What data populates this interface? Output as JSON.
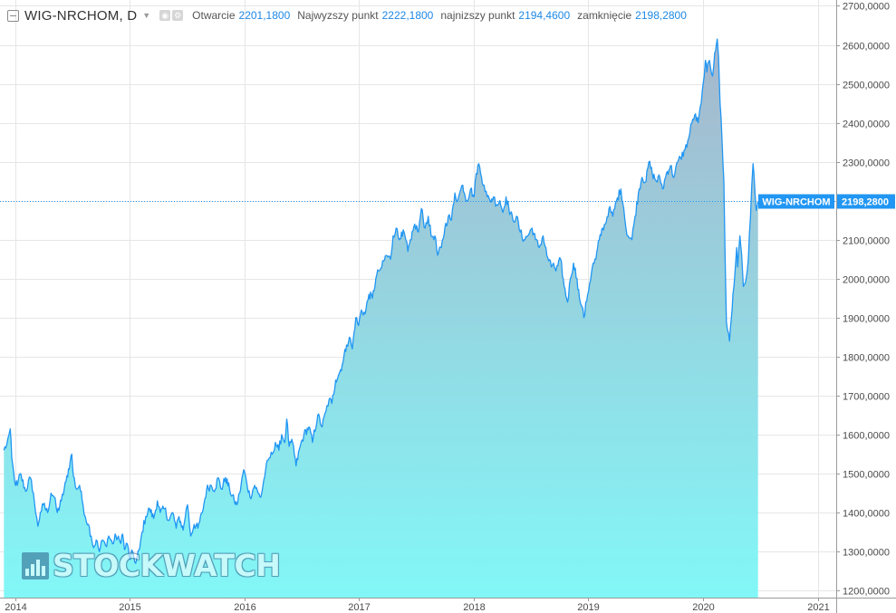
{
  "legend": {
    "symbol": "WIG-NRCHOM, D",
    "open_label": "Otwarcie",
    "open_value": "2201,1800",
    "high_label": "Najwyzszy punkt",
    "high_value": "2222,1800",
    "low_label": "najnizszy punkt",
    "low_value": "2194,4600",
    "close_label": "zamknięcie",
    "close_value": "2198,2800"
  },
  "watermark": "STOCKWATCH",
  "colors": {
    "line": "#2196f3",
    "fill_top": "#a7b6cc",
    "fill_bottom": "#82f7f7",
    "grid": "#e6e6e6",
    "price_tag": "#2196f3",
    "price_line": "#2196f3"
  },
  "chart_data": {
    "type": "area",
    "title": "WIG-NRCHOM, D",
    "xlabel": "",
    "ylabel": "",
    "x_range": [
      "2013-11-25",
      "2021-03-01"
    ],
    "ylim": [
      1182,
      2715
    ],
    "grid": true,
    "y_ticks": [
      1200,
      1300,
      1400,
      1500,
      1600,
      1700,
      1800,
      1900,
      2000,
      2100,
      2200,
      2300,
      2400,
      2500,
      2600,
      2700
    ],
    "y_tick_labels": [
      "1200,0000",
      "1300,0000",
      "1400,0000",
      "1500,0000",
      "1600,0000",
      "1700,0000",
      "1800,0000",
      "1900,0000",
      "2000,0000",
      "2100,0000",
      "2200,0000",
      "2300,0000",
      "2400,0000",
      "2500,0000",
      "2600,0000",
      "2700,0000"
    ],
    "x_ticks": [
      "2014-01-01",
      "2015-01-01",
      "2016-01-01",
      "2017-01-01",
      "2018-01-01",
      "2019-01-01",
      "2020-01-01",
      "2021-01-01"
    ],
    "x_tick_labels": [
      "2014",
      "2015",
      "2016",
      "2017",
      "2018",
      "2019",
      "2020",
      "2021"
    ],
    "last_value": 2198.28,
    "last_value_label": "2198,2800",
    "series": [
      {
        "name": "WIG-NRCHOM",
        "points": [
          [
            "2013-11-26",
            1560
          ],
          [
            "2013-12-05",
            1575
          ],
          [
            "2013-12-12",
            1600
          ],
          [
            "2013-12-16",
            1615
          ],
          [
            "2013-12-21",
            1540
          ],
          [
            "2013-12-30",
            1480
          ],
          [
            "2014-01-08",
            1470
          ],
          [
            "2014-01-17",
            1500
          ],
          [
            "2014-02-03",
            1455
          ],
          [
            "2014-02-18",
            1490
          ],
          [
            "2014-02-28",
            1450
          ],
          [
            "2014-03-07",
            1400
          ],
          [
            "2014-03-14",
            1365
          ],
          [
            "2014-03-22",
            1400
          ],
          [
            "2014-04-01",
            1420
          ],
          [
            "2014-04-14",
            1400
          ],
          [
            "2014-04-25",
            1450
          ],
          [
            "2014-05-05",
            1440
          ],
          [
            "2014-05-15",
            1400
          ],
          [
            "2014-05-28",
            1430
          ],
          [
            "2014-06-12",
            1480
          ],
          [
            "2014-06-25",
            1530
          ],
          [
            "2014-06-30",
            1550
          ],
          [
            "2014-07-05",
            1495
          ],
          [
            "2014-07-15",
            1460
          ],
          [
            "2014-07-25",
            1470
          ],
          [
            "2014-08-05",
            1420
          ],
          [
            "2014-08-12",
            1390
          ],
          [
            "2014-08-22",
            1370
          ],
          [
            "2014-08-31",
            1340
          ],
          [
            "2014-09-08",
            1310
          ],
          [
            "2014-09-16",
            1330
          ],
          [
            "2014-09-26",
            1300
          ],
          [
            "2014-10-06",
            1330
          ],
          [
            "2014-10-16",
            1315
          ],
          [
            "2014-10-26",
            1340
          ],
          [
            "2014-11-07",
            1320
          ],
          [
            "2014-11-18",
            1340
          ],
          [
            "2014-12-01",
            1325
          ],
          [
            "2014-12-09",
            1345
          ],
          [
            "2014-12-15",
            1305
          ],
          [
            "2014-12-24",
            1320
          ],
          [
            "2015-01-02",
            1280
          ],
          [
            "2015-01-10",
            1300
          ],
          [
            "2015-01-20",
            1270
          ],
          [
            "2015-02-02",
            1310
          ],
          [
            "2015-02-09",
            1350
          ],
          [
            "2015-02-21",
            1390
          ],
          [
            "2015-03-05",
            1410
          ],
          [
            "2015-03-18",
            1385
          ],
          [
            "2015-03-30",
            1430
          ],
          [
            "2015-04-08",
            1400
          ],
          [
            "2015-04-22",
            1410
          ],
          [
            "2015-05-06",
            1380
          ],
          [
            "2015-05-18",
            1400
          ],
          [
            "2015-05-29",
            1360
          ],
          [
            "2015-06-07",
            1390
          ],
          [
            "2015-06-20",
            1355
          ],
          [
            "2015-06-30",
            1410
          ],
          [
            "2015-07-04",
            1420
          ],
          [
            "2015-07-14",
            1340
          ],
          [
            "2015-07-25",
            1370
          ],
          [
            "2015-08-06",
            1360
          ],
          [
            "2015-08-20",
            1400
          ],
          [
            "2015-09-03",
            1460
          ],
          [
            "2015-09-17",
            1470
          ],
          [
            "2015-09-30",
            1460
          ],
          [
            "2015-10-09",
            1490
          ],
          [
            "2015-10-20",
            1460
          ],
          [
            "2015-11-02",
            1490
          ],
          [
            "2015-11-15",
            1460
          ],
          [
            "2015-11-30",
            1430
          ],
          [
            "2015-12-08",
            1420
          ],
          [
            "2015-12-17",
            1450
          ],
          [
            "2015-12-30",
            1510
          ],
          [
            "2016-01-08",
            1480
          ],
          [
            "2016-01-19",
            1440
          ],
          [
            "2016-02-03",
            1470
          ],
          [
            "2016-02-14",
            1450
          ],
          [
            "2016-02-23",
            1440
          ],
          [
            "2016-03-09",
            1510
          ],
          [
            "2016-03-20",
            1540
          ],
          [
            "2016-03-30",
            1550
          ],
          [
            "2016-04-09",
            1580
          ],
          [
            "2016-04-20",
            1560
          ],
          [
            "2016-04-29",
            1600
          ],
          [
            "2016-05-09",
            1580
          ],
          [
            "2016-05-15",
            1640
          ],
          [
            "2016-05-23",
            1570
          ],
          [
            "2016-06-03",
            1580
          ],
          [
            "2016-06-14",
            1520
          ],
          [
            "2016-06-27",
            1570
          ],
          [
            "2016-07-09",
            1600
          ],
          [
            "2016-07-25",
            1620
          ],
          [
            "2016-08-05",
            1580
          ],
          [
            "2016-08-22",
            1650
          ],
          [
            "2016-09-05",
            1620
          ],
          [
            "2016-09-17",
            1660
          ],
          [
            "2016-09-27",
            1690
          ],
          [
            "2016-10-06",
            1680
          ],
          [
            "2016-10-18",
            1740
          ],
          [
            "2016-10-31",
            1760
          ],
          [
            "2016-11-08",
            1780
          ],
          [
            "2016-11-22",
            1830
          ],
          [
            "2016-12-01",
            1850
          ],
          [
            "2016-12-10",
            1820
          ],
          [
            "2016-12-21",
            1900
          ],
          [
            "2016-12-30",
            1880
          ],
          [
            "2017-01-08",
            1920
          ],
          [
            "2017-01-20",
            1910
          ],
          [
            "2017-02-01",
            1960
          ],
          [
            "2017-02-12",
            1950
          ],
          [
            "2017-02-23",
            2000
          ],
          [
            "2017-03-04",
            2020
          ],
          [
            "2017-03-14",
            2030
          ],
          [
            "2017-03-28",
            2060
          ],
          [
            "2017-04-11",
            2050
          ],
          [
            "2017-04-19",
            2110
          ],
          [
            "2017-04-29",
            2130
          ],
          [
            "2017-05-08",
            2100
          ],
          [
            "2017-05-16",
            2120
          ],
          [
            "2017-05-27",
            2110
          ],
          [
            "2017-06-05",
            2070
          ],
          [
            "2017-06-16",
            2100
          ],
          [
            "2017-06-27",
            2140
          ],
          [
            "2017-07-09",
            2120
          ],
          [
            "2017-07-18",
            2180
          ],
          [
            "2017-07-30",
            2130
          ],
          [
            "2017-08-09",
            2160
          ],
          [
            "2017-08-18",
            2110
          ],
          [
            "2017-08-30",
            2110
          ],
          [
            "2017-09-08",
            2060
          ],
          [
            "2017-09-20",
            2080
          ],
          [
            "2017-10-01",
            2130
          ],
          [
            "2017-10-12",
            2160
          ],
          [
            "2017-10-22",
            2150
          ],
          [
            "2017-11-02",
            2220
          ],
          [
            "2017-11-11",
            2200
          ],
          [
            "2017-11-21",
            2230
          ],
          [
            "2017-11-27",
            2240
          ],
          [
            "2017-12-10",
            2200
          ],
          [
            "2017-12-22",
            2230
          ],
          [
            "2018-01-02",
            2210
          ],
          [
            "2018-01-09",
            2270
          ],
          [
            "2018-01-17",
            2295
          ],
          [
            "2018-01-23",
            2270
          ],
          [
            "2018-02-03",
            2240
          ],
          [
            "2018-02-13",
            2210
          ],
          [
            "2018-02-22",
            2200
          ],
          [
            "2018-03-05",
            2210
          ],
          [
            "2018-03-15",
            2190
          ],
          [
            "2018-03-25",
            2200
          ],
          [
            "2018-04-04",
            2170
          ],
          [
            "2018-04-14",
            2210
          ],
          [
            "2018-04-23",
            2180
          ],
          [
            "2018-05-06",
            2150
          ],
          [
            "2018-05-17",
            2160
          ],
          [
            "2018-05-29",
            2120
          ],
          [
            "2018-06-10",
            2100
          ],
          [
            "2018-06-22",
            2110
          ],
          [
            "2018-07-06",
            2130
          ],
          [
            "2018-07-17",
            2100
          ],
          [
            "2018-07-29",
            2080
          ],
          [
            "2018-08-10",
            2110
          ],
          [
            "2018-08-22",
            2060
          ],
          [
            "2018-09-05",
            2030
          ],
          [
            "2018-09-12",
            2040
          ],
          [
            "2018-09-20",
            2020
          ],
          [
            "2018-10-05",
            2050
          ],
          [
            "2018-10-16",
            1980
          ],
          [
            "2018-10-27",
            1940
          ],
          [
            "2018-11-05",
            2000
          ],
          [
            "2018-11-15",
            2040
          ],
          [
            "2018-11-26",
            2000
          ],
          [
            "2018-12-04",
            1950
          ],
          [
            "2018-12-11",
            1930
          ],
          [
            "2018-12-18",
            1900
          ],
          [
            "2018-12-30",
            1960
          ],
          [
            "2019-01-14",
            2030
          ],
          [
            "2019-01-25",
            2050
          ],
          [
            "2019-02-05",
            2100
          ],
          [
            "2019-02-16",
            2130
          ],
          [
            "2019-02-24",
            2140
          ],
          [
            "2019-03-08",
            2180
          ],
          [
            "2019-03-20",
            2160
          ],
          [
            "2019-04-01",
            2200
          ],
          [
            "2019-04-15",
            2230
          ],
          [
            "2019-04-24",
            2180
          ],
          [
            "2019-05-01",
            2130
          ],
          [
            "2019-05-08",
            2110
          ],
          [
            "2019-05-20",
            2100
          ],
          [
            "2019-05-30",
            2160
          ],
          [
            "2019-06-12",
            2230
          ],
          [
            "2019-06-21",
            2260
          ],
          [
            "2019-07-04",
            2250
          ],
          [
            "2019-07-13",
            2300
          ],
          [
            "2019-07-24",
            2270
          ],
          [
            "2019-08-06",
            2250
          ],
          [
            "2019-08-17",
            2260
          ],
          [
            "2019-08-26",
            2230
          ],
          [
            "2019-09-07",
            2270
          ],
          [
            "2019-09-20",
            2290
          ],
          [
            "2019-10-01",
            2260
          ],
          [
            "2019-10-13",
            2300
          ],
          [
            "2019-10-22",
            2310
          ],
          [
            "2019-11-05",
            2330
          ],
          [
            "2019-11-17",
            2360
          ],
          [
            "2019-11-27",
            2400
          ],
          [
            "2019-12-06",
            2420
          ],
          [
            "2019-12-17",
            2400
          ],
          [
            "2019-12-27",
            2450
          ],
          [
            "2020-01-02",
            2500
          ],
          [
            "2020-01-09",
            2560
          ],
          [
            "2020-01-14",
            2530
          ],
          [
            "2020-01-22",
            2560
          ],
          [
            "2020-02-01",
            2520
          ],
          [
            "2020-02-08",
            2580
          ],
          [
            "2020-02-13",
            2600
          ],
          [
            "2020-02-16",
            2615
          ],
          [
            "2020-02-20",
            2570
          ],
          [
            "2020-02-25",
            2450
          ],
          [
            "2020-03-02",
            2360
          ],
          [
            "2020-03-08",
            2250
          ],
          [
            "2020-03-12",
            2050
          ],
          [
            "2020-03-16",
            1890
          ],
          [
            "2020-03-19",
            1870
          ],
          [
            "2020-03-23",
            1860
          ],
          [
            "2020-03-26",
            1840
          ],
          [
            "2020-04-01",
            1900
          ],
          [
            "2020-04-06",
            1960
          ],
          [
            "2020-04-12",
            2010
          ],
          [
            "2020-04-18",
            2080
          ],
          [
            "2020-04-21",
            2030
          ],
          [
            "2020-04-28",
            2110
          ],
          [
            "2020-05-04",
            2060
          ],
          [
            "2020-05-09",
            1980
          ],
          [
            "2020-05-18",
            2000
          ],
          [
            "2020-05-25",
            2050
          ],
          [
            "2020-06-01",
            2160
          ],
          [
            "2020-06-05",
            2240
          ],
          [
            "2020-06-09",
            2295
          ],
          [
            "2020-06-14",
            2240
          ],
          [
            "2020-06-19",
            2175
          ],
          [
            "2020-06-23",
            2190
          ],
          [
            "2020-06-25",
            2198.28
          ]
        ]
      }
    ]
  }
}
